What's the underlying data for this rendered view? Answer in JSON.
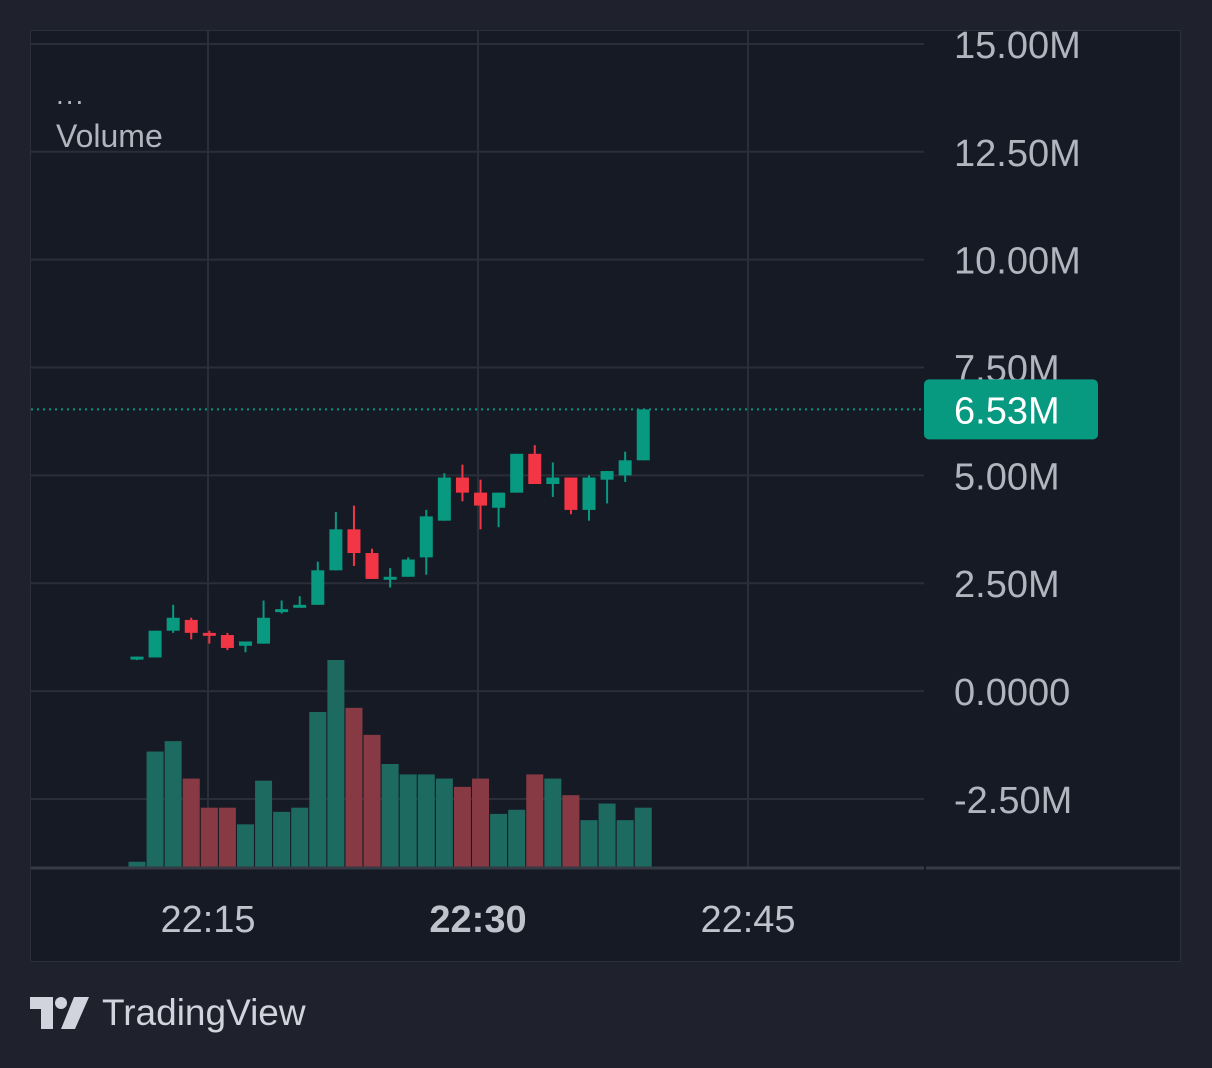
{
  "legend": {
    "dots": "...",
    "series_label": "Volume"
  },
  "brand": {
    "name": "TradingView"
  },
  "colors": {
    "up": "#089981",
    "down": "#f23645",
    "volume_up": "#1d6a61",
    "volume_down": "#873a44",
    "grid": "#2a2e39",
    "axis_text": "#b2b5be",
    "last_price_bg": "#089981"
  },
  "chart_data": {
    "type": "candlestick",
    "y_axis": {
      "range": [
        -4.1,
        15.3
      ],
      "unit": "M",
      "tick_labels": [
        "15.00M",
        "12.50M",
        "10.00M",
        "7.50M",
        "5.00M",
        "2.50M",
        "0.0000",
        "-2.50M"
      ],
      "tick_values": [
        15,
        12.5,
        10,
        7.5,
        5,
        2.5,
        0,
        -2.5
      ]
    },
    "x_axis": {
      "tick_labels": [
        "22:15",
        "22:30",
        "22:45"
      ],
      "bold_label": "22:30"
    },
    "last_value_label": "6.53M",
    "last_value": 6.53,
    "grid": true,
    "candles": [
      {
        "o": 0.75,
        "h": 0.8,
        "l": 0.72,
        "c": 0.8
      },
      {
        "o": 0.78,
        "h": 1.4,
        "l": 0.78,
        "c": 1.4
      },
      {
        "o": 1.4,
        "h": 2.0,
        "l": 1.35,
        "c": 1.7
      },
      {
        "o": 1.65,
        "h": 1.7,
        "l": 1.2,
        "c": 1.35
      },
      {
        "o": 1.35,
        "h": 1.4,
        "l": 1.1,
        "c": 1.3
      },
      {
        "o": 1.3,
        "h": 1.35,
        "l": 0.95,
        "c": 1.0
      },
      {
        "o": 1.05,
        "h": 1.15,
        "l": 0.9,
        "c": 1.15
      },
      {
        "o": 1.1,
        "h": 2.1,
        "l": 1.1,
        "c": 1.7
      },
      {
        "o": 1.85,
        "h": 2.1,
        "l": 1.8,
        "c": 1.9
      },
      {
        "o": 1.95,
        "h": 2.2,
        "l": 1.95,
        "c": 2.0
      },
      {
        "o": 2.0,
        "h": 3.0,
        "l": 2.0,
        "c": 2.8
      },
      {
        "o": 2.8,
        "h": 4.15,
        "l": 2.8,
        "c": 3.75
      },
      {
        "o": 3.75,
        "h": 4.3,
        "l": 2.9,
        "c": 3.2
      },
      {
        "o": 3.2,
        "h": 3.3,
        "l": 2.6,
        "c": 2.6
      },
      {
        "o": 2.6,
        "h": 2.85,
        "l": 2.4,
        "c": 2.65
      },
      {
        "o": 2.65,
        "h": 3.1,
        "l": 2.65,
        "c": 3.05
      },
      {
        "o": 3.1,
        "h": 4.2,
        "l": 2.7,
        "c": 4.05
      },
      {
        "o": 3.95,
        "h": 5.05,
        "l": 3.95,
        "c": 4.95
      },
      {
        "o": 4.95,
        "h": 5.25,
        "l": 4.4,
        "c": 4.6
      },
      {
        "o": 4.6,
        "h": 4.9,
        "l": 3.75,
        "c": 4.3
      },
      {
        "o": 4.25,
        "h": 4.6,
        "l": 3.8,
        "c": 4.6
      },
      {
        "o": 4.6,
        "h": 5.5,
        "l": 4.6,
        "c": 5.5
      },
      {
        "o": 5.5,
        "h": 5.7,
        "l": 4.8,
        "c": 4.8
      },
      {
        "o": 4.8,
        "h": 5.3,
        "l": 4.5,
        "c": 4.95
      },
      {
        "o": 4.95,
        "h": 4.95,
        "l": 4.1,
        "c": 4.2
      },
      {
        "o": 4.2,
        "h": 5.0,
        "l": 3.95,
        "c": 4.95
      },
      {
        "o": 4.9,
        "h": 5.1,
        "l": 4.35,
        "c": 5.1
      },
      {
        "o": 5.0,
        "h": 5.55,
        "l": 4.85,
        "c": 5.35
      },
      {
        "o": 5.35,
        "h": 6.53,
        "l": 5.35,
        "c": 6.53
      }
    ],
    "volume_relative": [
      0.03,
      0.56,
      0.61,
      0.43,
      0.29,
      0.29,
      0.21,
      0.42,
      0.27,
      0.29,
      0.75,
      1.0,
      0.77,
      0.64,
      0.5,
      0.45,
      0.45,
      0.43,
      0.39,
      0.43,
      0.26,
      0.28,
      0.45,
      0.43,
      0.35,
      0.23,
      0.31,
      0.23,
      0.29
    ]
  }
}
